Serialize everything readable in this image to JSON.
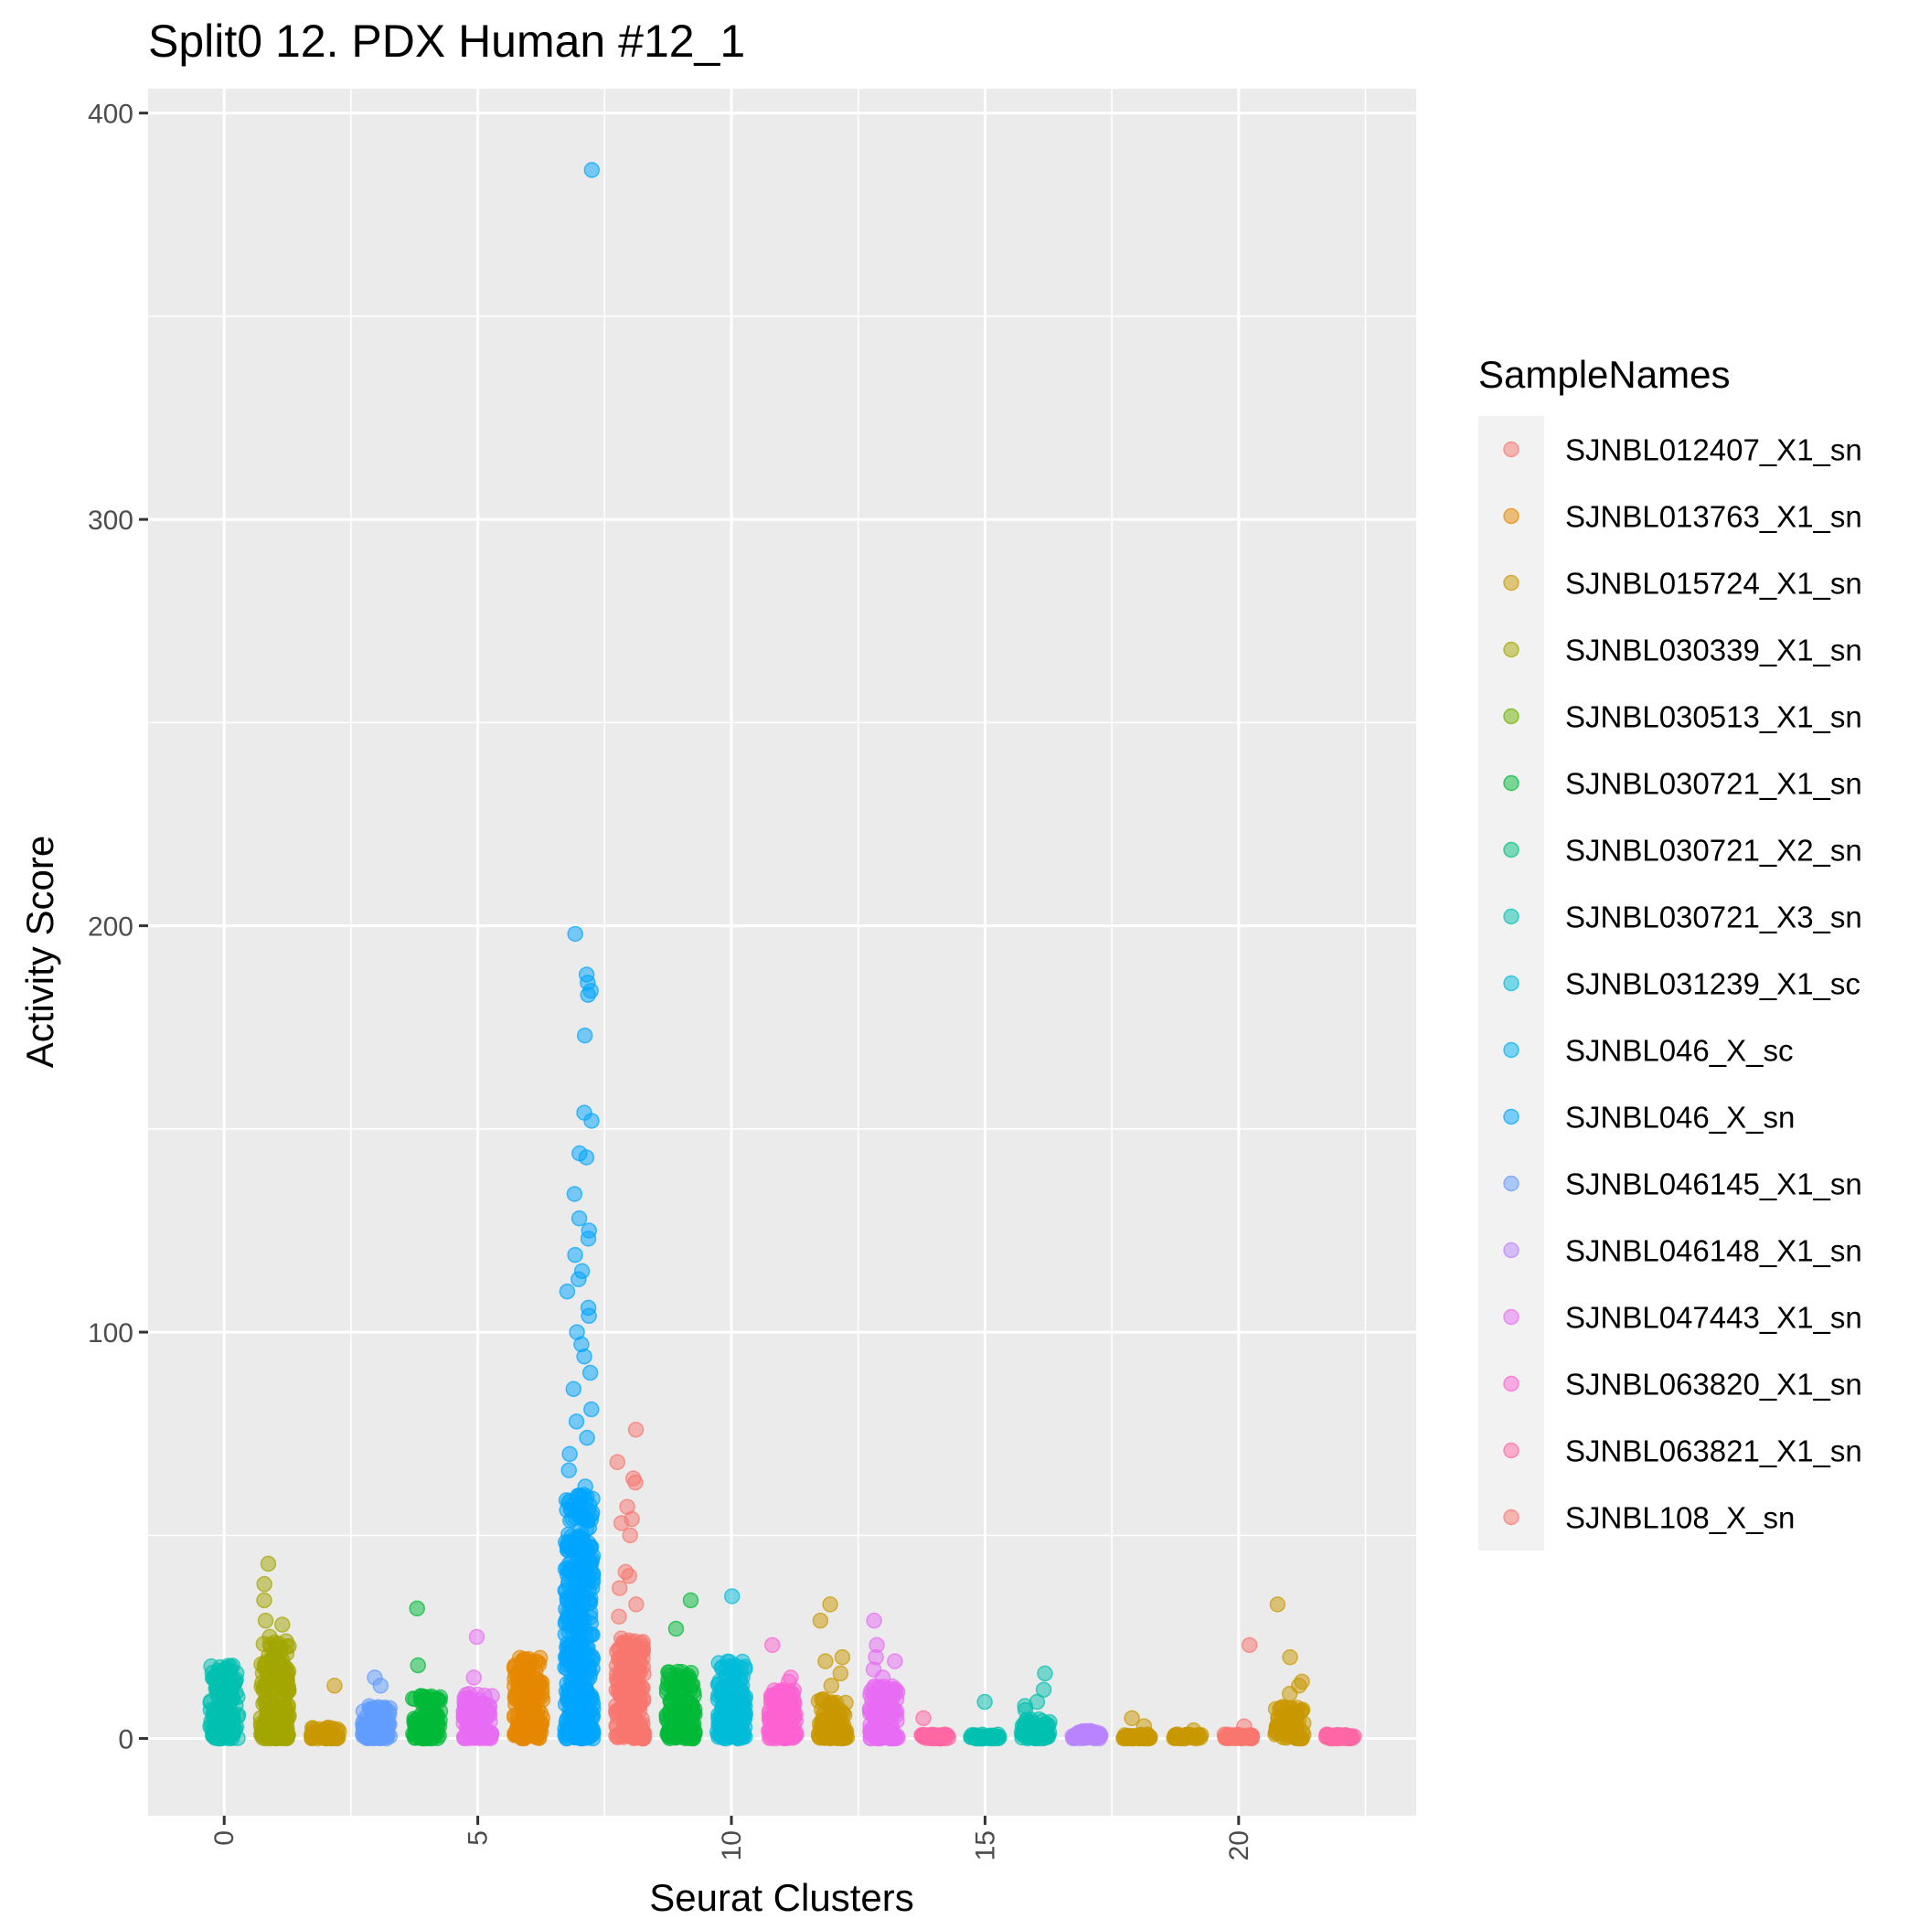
{
  "chart_data": {
    "type": "scatter",
    "title": "Split0 12. PDX Human #12_1",
    "xlabel": "Seurat Clusters",
    "ylabel": "Activity Score",
    "xlim": [
      -1.5,
      23.5
    ],
    "ylim": [
      -19,
      406
    ],
    "x_ticks": [
      0,
      5,
      10,
      15,
      20
    ],
    "y_ticks": [
      0,
      100,
      200,
      300,
      400
    ],
    "grid": true,
    "legend": {
      "title": "SampleNames",
      "position": "right"
    },
    "series": [
      {
        "name": "SJNBL012407_X1_sn",
        "color": "#F8766D"
      },
      {
        "name": "SJNBL013763_X1_sn",
        "color": "#E58700"
      },
      {
        "name": "SJNBL015724_X1_sn",
        "color": "#C99800"
      },
      {
        "name": "SJNBL030339_X1_sn",
        "color": "#A3A500"
      },
      {
        "name": "SJNBL030513_X1_sn",
        "color": "#6BB100"
      },
      {
        "name": "SJNBL030721_X1_sn",
        "color": "#00BA38"
      },
      {
        "name": "SJNBL030721_X2_sn",
        "color": "#00BF7D"
      },
      {
        "name": "SJNBL030721_X3_sn",
        "color": "#00C0AF"
      },
      {
        "name": "SJNBL031239_X1_sc",
        "color": "#00BCD8"
      },
      {
        "name": "SJNBL046_X_sc",
        "color": "#00B0F6"
      },
      {
        "name": "SJNBL046_X_sn",
        "color": "#00A5FF"
      },
      {
        "name": "SJNBL046145_X1_sn",
        "color": "#619CFF"
      },
      {
        "name": "SJNBL046148_X1_sn",
        "color": "#B983FF"
      },
      {
        "name": "SJNBL047443_X1_sn",
        "color": "#E76BF3"
      },
      {
        "name": "SJNBL063820_X1_sn",
        "color": "#FD61D1"
      },
      {
        "name": "SJNBL063821_X1_sn",
        "color": "#FF67A4"
      },
      {
        "name": "SJNBL108_X_sn",
        "color": "#F8766D"
      }
    ],
    "clusters": [
      {
        "x": 0,
        "sample": "SJNBL030721_X3_sn",
        "max": 18,
        "outliers": [
          17,
          14,
          12,
          10
        ]
      },
      {
        "x": 1,
        "sample": "SJNBL030339_X1_sn",
        "max": 24,
        "outliers": [
          43,
          38,
          34,
          29,
          28,
          25
        ]
      },
      {
        "x": 2,
        "sample": "SJNBL015724_X1_sn",
        "max": 3,
        "outliers": [
          13
        ]
      },
      {
        "x": 3,
        "sample": "SJNBL046145_X1_sn",
        "max": 8,
        "outliers": [
          15,
          13
        ]
      },
      {
        "x": 4,
        "sample": "SJNBL030721_X1_sn",
        "max": 11,
        "outliers": [
          32,
          18
        ]
      },
      {
        "x": 5,
        "sample": "SJNBL047443_X1_sn",
        "max": 11,
        "outliers": [
          25,
          15
        ]
      },
      {
        "x": 6,
        "sample": "SJNBL013763_X1_sn",
        "max": 20,
        "outliers": [
          19
        ]
      },
      {
        "x": 7,
        "sample": "SJNBL046_X_sn",
        "max": 60,
        "outliers": [
          386,
          198,
          188,
          186,
          184,
          183,
          173,
          154,
          152,
          144,
          143,
          134,
          128,
          125,
          123,
          119,
          115,
          113,
          110,
          106,
          104,
          100,
          97,
          94,
          90,
          86,
          81,
          78,
          74,
          70,
          66,
          62
        ]
      },
      {
        "x": 8,
        "sample": "SJNBL012407_X1_sn",
        "max": 25,
        "outliers": [
          76,
          68,
          64,
          63,
          57,
          54,
          53,
          50,
          41,
          40,
          37,
          33,
          30
        ]
      },
      {
        "x": 9,
        "sample": "SJNBL030721_X1_sn",
        "max": 17,
        "outliers": [
          34,
          27
        ]
      },
      {
        "x": 10,
        "sample": "SJNBL031239_X1_sc",
        "max": 19,
        "outliers": [
          35
        ]
      },
      {
        "x": 11,
        "sample": "SJNBL063820_X1_sn",
        "max": 12,
        "outliers": [
          23,
          15,
          14
        ]
      },
      {
        "x": 12,
        "sample": "SJNBL015724_X1_sn",
        "max": 10,
        "outliers": [
          33,
          29,
          20,
          19,
          16,
          13
        ]
      },
      {
        "x": 13,
        "sample": "SJNBL047443_X1_sn",
        "max": 13,
        "outliers": [
          29,
          23,
          20,
          19,
          17,
          15
        ]
      },
      {
        "x": 14,
        "sample": "SJNBL063821_X1_sn",
        "max": 1,
        "outliers": [
          5
        ]
      },
      {
        "x": 15,
        "sample": "SJNBL030721_X3_sn",
        "max": 1,
        "outliers": [
          9
        ]
      },
      {
        "x": 16,
        "sample": "SJNBL030721_X3_sn",
        "max": 5,
        "outliers": [
          16,
          12,
          9,
          8,
          7
        ]
      },
      {
        "x": 17,
        "sample": "SJNBL046148_X1_sn",
        "max": 2,
        "outliers": []
      },
      {
        "x": 18,
        "sample": "SJNBL015724_X1_sn",
        "max": 1,
        "outliers": [
          5,
          3
        ]
      },
      {
        "x": 19,
        "sample": "SJNBL015724_X1_sn",
        "max": 1,
        "outliers": [
          2
        ]
      },
      {
        "x": 20,
        "sample": "SJNBL012407_X1_sn",
        "max": 1,
        "outliers": [
          23,
          3
        ]
      },
      {
        "x": 21,
        "sample": "SJNBL015724_X1_sn",
        "max": 8,
        "outliers": [
          33,
          20,
          14,
          13,
          11
        ]
      },
      {
        "x": 22,
        "sample": "SJNBL063821_X1_sn",
        "max": 1,
        "outliers": []
      }
    ]
  }
}
